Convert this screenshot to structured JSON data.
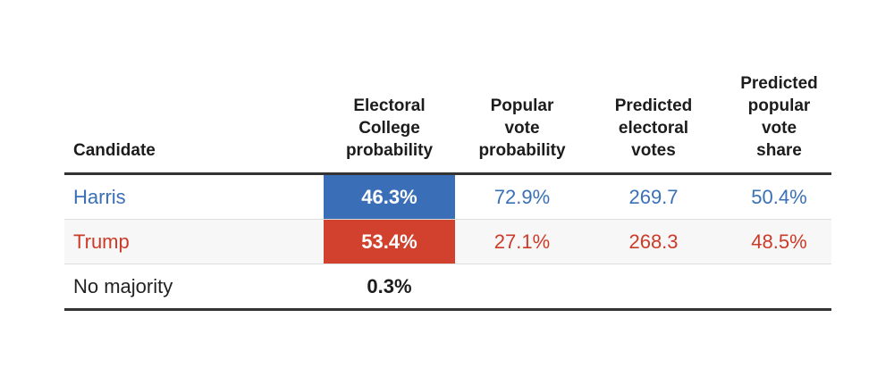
{
  "table": {
    "headers": {
      "candidate": "Candidate",
      "ec_prob": [
        "Electoral",
        "College",
        "probability"
      ],
      "pv_prob": [
        "Popular",
        "vote",
        "probability"
      ],
      "pred_ev": [
        "Predicted",
        "electoral",
        "votes"
      ],
      "pred_pv": [
        "Predicted",
        "popular",
        "vote",
        "share"
      ]
    },
    "rows": [
      {
        "candidate": "Harris",
        "ec_prob": "46.3%",
        "pv_prob": "72.9%",
        "pred_ev": "269.7",
        "pred_pv": "50.4%"
      },
      {
        "candidate": "Trump",
        "ec_prob": "53.4%",
        "pv_prob": "27.1%",
        "pred_ev": "268.3",
        "pred_pv": "48.5%"
      },
      {
        "candidate": "No majority",
        "ec_prob": "0.3%"
      }
    ]
  },
  "colors": {
    "harris_blue": "#3a6fb8",
    "harris_text": "#3a70b6",
    "trump_red": "#d1412d",
    "trump_text": "#cc3b28",
    "rule": "#333333"
  }
}
